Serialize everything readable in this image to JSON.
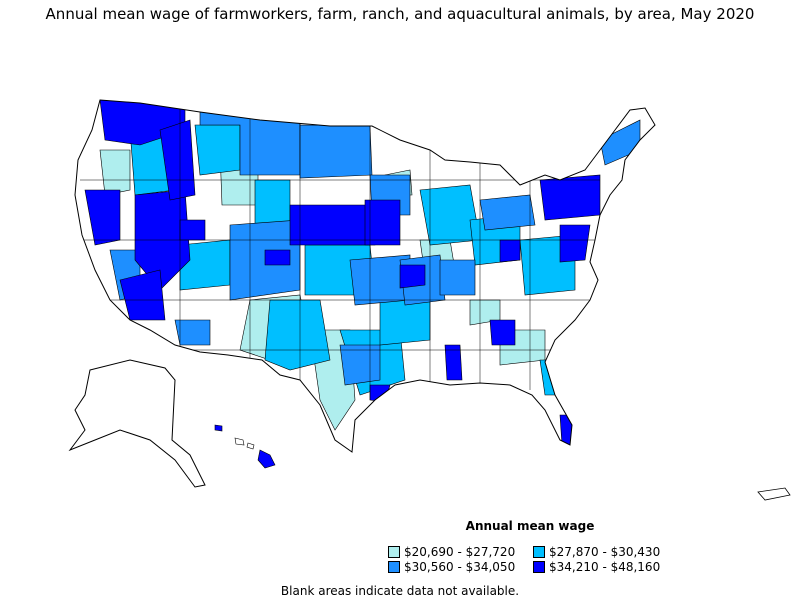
{
  "title": "Annual mean wage of farmworkers, farm, ranch, and aquacultural animals, by area, May 2020",
  "legend": {
    "title": "Annual mean wage",
    "items": [
      {
        "label": "$20,690 - $27,720",
        "color": "#afeeee"
      },
      {
        "label": "$27,870 - $30,430",
        "color": "#00bfff"
      },
      {
        "label": "$30,560 - $34,050",
        "color": "#1e8fff"
      },
      {
        "label": "$34,210 - $48,160",
        "color": "#0000ff"
      }
    ]
  },
  "note": "Blank areas indicate data not available."
}
